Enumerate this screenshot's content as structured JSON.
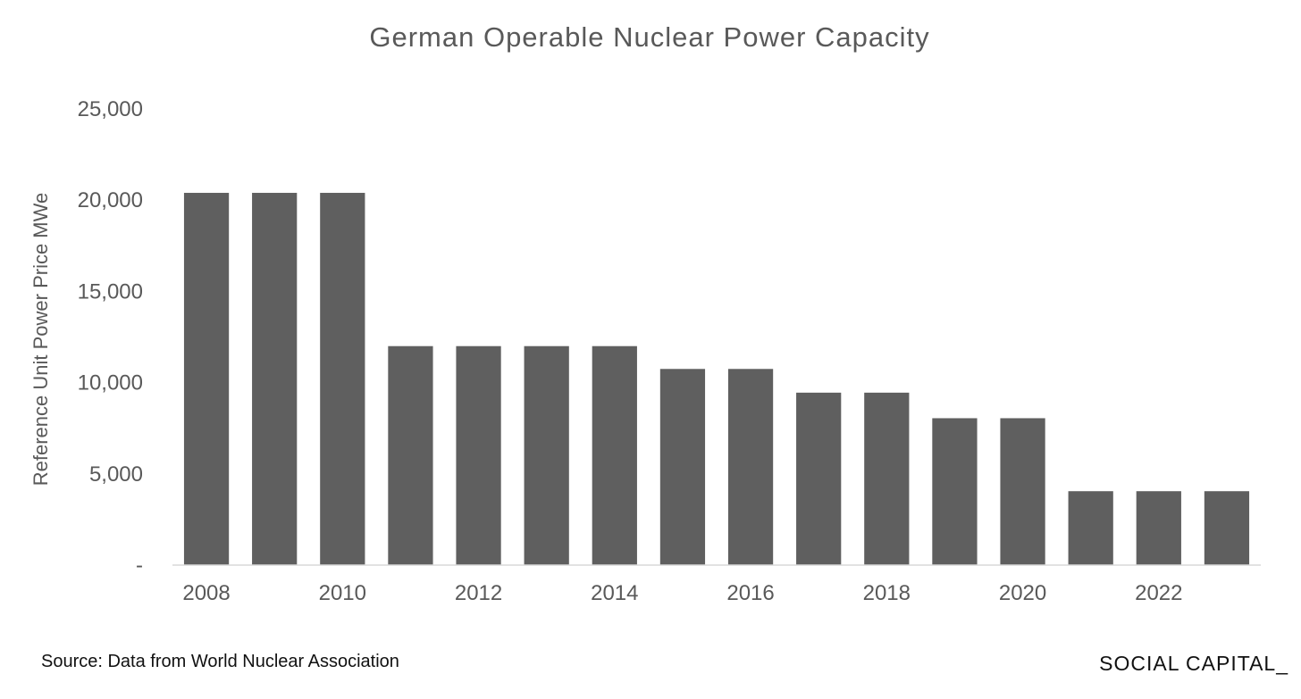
{
  "chart_data": {
    "type": "bar",
    "title": "German Operable Nuclear Power Capacity",
    "ylabel": "Reference Unit Power Price MWe",
    "xlabel": "",
    "categories": [
      "2008",
      "2009",
      "2010",
      "2011",
      "2012",
      "2013",
      "2014",
      "2015",
      "2016",
      "2017",
      "2018",
      "2019",
      "2020",
      "2021",
      "2022",
      "2023"
    ],
    "values": [
      20400,
      20400,
      20400,
      12000,
      12000,
      12000,
      12000,
      10750,
      10750,
      9450,
      9450,
      8050,
      8050,
      4050,
      4050,
      4050
    ],
    "x_tick_labels": [
      "2008",
      "",
      "2010",
      "",
      "2012",
      "",
      "2014",
      "",
      "2016",
      "",
      "2018",
      "",
      "2020",
      "",
      "2022",
      ""
    ],
    "y_ticks": [
      0,
      5000,
      10000,
      15000,
      20000,
      25000
    ],
    "y_tick_labels": [
      "-",
      "5,000",
      "10,000",
      "15,000",
      "20,000",
      "25,000"
    ],
    "ylim": [
      0,
      25000
    ],
    "grid": false,
    "legend": "none",
    "bar_color": "#5f5f5f",
    "axis_color": "#d9d9d9"
  },
  "footer": {
    "source": "Source: Data from World Nuclear Association",
    "brand": "SOCIAL CAPITAL_"
  }
}
